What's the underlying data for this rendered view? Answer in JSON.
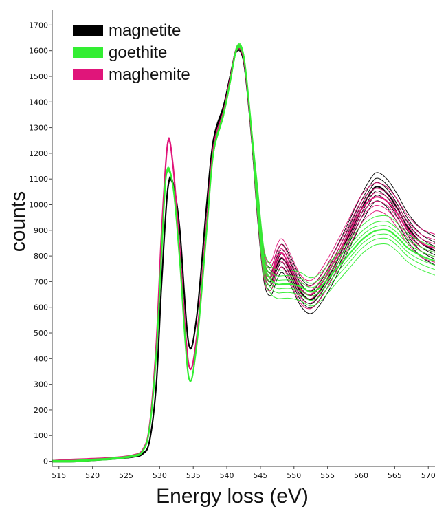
{
  "chart_data": {
    "type": "line",
    "xlabel": "Energy loss (eV)",
    "ylabel": "counts",
    "xlim": [
      514,
      571
    ],
    "ylim": [
      -20,
      1760
    ],
    "xticks": [
      515,
      520,
      525,
      530,
      535,
      540,
      545,
      550,
      555,
      560,
      565,
      570
    ],
    "yticks": [
      0,
      100,
      200,
      300,
      400,
      500,
      600,
      700,
      800,
      900,
      1000,
      1100,
      1200,
      1300,
      1400,
      1500,
      1600,
      1700
    ],
    "legend_position": "top-left",
    "grid": false,
    "series": [
      {
        "name": "magnetite",
        "color": "#000000",
        "x": [
          514,
          517,
          520,
          523,
          526,
          527.5,
          528.5,
          529.5,
          530.3,
          531.2,
          532.0,
          533.0,
          534.3,
          535.5,
          537,
          538,
          539.5,
          540.5,
          541.5,
          542.5,
          543.5,
          544.5,
          545.5,
          546.5,
          547.5,
          548.3,
          549.5,
          551,
          552.5,
          554,
          556,
          558,
          560,
          561.5,
          562.5,
          564,
          565.5,
          567,
          569,
          571
        ],
        "values": [
          0,
          0,
          5,
          10,
          18,
          30,
          80,
          300,
          700,
          1060,
          1080,
          900,
          460,
          560,
          1000,
          1250,
          1380,
          1500,
          1605,
          1560,
          1320,
          1020,
          760,
          700,
          765,
          790,
          740,
          660,
          630,
          670,
          760,
          870,
          980,
          1050,
          1070,
          1040,
          980,
          910,
          850,
          820
        ]
      },
      {
        "name": "goethite",
        "color": "#33ee33",
        "x": [
          514,
          517,
          520,
          523,
          526,
          527.5,
          528.5,
          529.5,
          530.3,
          531.0,
          532.0,
          533.0,
          534.3,
          535.5,
          537,
          538,
          539.5,
          540.5,
          541.5,
          542.5,
          543.5,
          544.5,
          545.5,
          546.5,
          547.5,
          548.3,
          549.5,
          551,
          552.5,
          554,
          556,
          558,
          560,
          561.5,
          562.5,
          564,
          565.5,
          567,
          569,
          571
        ],
        "values": [
          0,
          0,
          5,
          10,
          20,
          40,
          130,
          420,
          820,
          1120,
          1070,
          780,
          330,
          450,
          900,
          1200,
          1350,
          1480,
          1610,
          1580,
          1340,
          1040,
          780,
          710,
          690,
          690,
          690,
          680,
          660,
          680,
          740,
          800,
          860,
          890,
          900,
          900,
          870,
          830,
          800,
          780
        ]
      },
      {
        "name": "maghemite",
        "color": "#e0157a",
        "x": [
          514,
          517,
          520,
          523,
          526,
          527.5,
          528.5,
          529.5,
          530.3,
          531.2,
          532.0,
          533.0,
          534.3,
          535.5,
          537,
          538,
          539.5,
          540.5,
          541.5,
          542.5,
          543.5,
          544.5,
          545.5,
          546.5,
          547.5,
          548.3,
          549.5,
          551,
          552.5,
          554,
          556,
          558,
          560,
          561.5,
          562.5,
          564,
          565.5,
          567,
          569,
          571
        ],
        "values": [
          0,
          5,
          8,
          12,
          22,
          45,
          140,
          460,
          900,
          1240,
          1150,
          820,
          380,
          480,
          930,
          1220,
          1360,
          1490,
          1610,
          1570,
          1330,
          1030,
          770,
          720,
          790,
          810,
          750,
          670,
          650,
          690,
          780,
          880,
          980,
          1020,
          1030,
          1010,
          960,
          900,
          850,
          830
        ]
      }
    ]
  }
}
